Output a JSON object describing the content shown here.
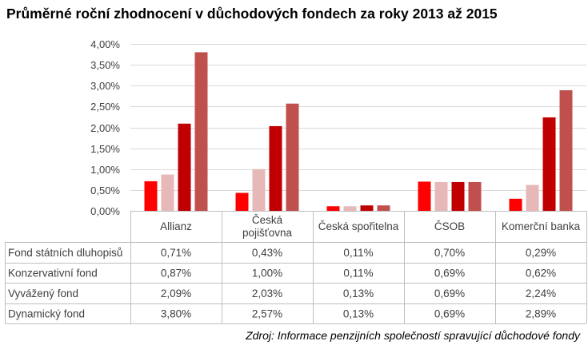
{
  "title": "Průměrné roční zhodnocení v důchodových fondech za roky 2013 až 2015",
  "source": "Zdroj: Informace penzijních společností spravující důchodové fondy",
  "chart_data": {
    "type": "bar",
    "categories": [
      "Allianz",
      "Česká pojišťovna",
      "Česká spořitelna",
      "ČSOB",
      "Komerční banka"
    ],
    "category_lines": [
      [
        "Allianz"
      ],
      [
        "Česká",
        "pojišťovna"
      ],
      [
        "Česká spořitelna"
      ],
      [
        "ČSOB"
      ],
      [
        "Komerční banka"
      ]
    ],
    "ylim": [
      0,
      4
    ],
    "yticks": [
      0,
      0.5,
      1,
      1.5,
      2,
      2.5,
      3,
      3.5,
      4
    ],
    "ytick_labels": [
      "0,00%",
      "0,50%",
      "1,00%",
      "1,50%",
      "2,00%",
      "2,50%",
      "3,00%",
      "3,50%",
      "4,00%"
    ],
    "grid": true,
    "legend": "data table below chart",
    "series": [
      {
        "name": "Fond státních dluhopisů",
        "values": [
          0.71,
          0.43,
          0.11,
          0.7,
          0.29
        ],
        "labels": [
          "0,71%",
          "0,43%",
          "0,11%",
          "0,70%",
          "0,29%"
        ],
        "color": "#ff0000"
      },
      {
        "name": "Konzervativní fond",
        "values": [
          0.87,
          1.0,
          0.11,
          0.69,
          0.62
        ],
        "labels": [
          "0,87%",
          "1,00%",
          "0,11%",
          "0,69%",
          "0,62%"
        ],
        "color": "#e6b9b8"
      },
      {
        "name": "Vyvážený fond",
        "values": [
          2.09,
          2.03,
          0.13,
          0.69,
          2.24
        ],
        "labels": [
          "2,09%",
          "2,03%",
          "0,13%",
          "0,69%",
          "2,24%"
        ],
        "color": "#c00000"
      },
      {
        "name": "Dynamický fond",
        "values": [
          3.8,
          2.57,
          0.13,
          0.69,
          2.89
        ],
        "labels": [
          "3,80%",
          "2,57%",
          "0,13%",
          "0,69%",
          "2,89%"
        ],
        "color": "#c0504d"
      }
    ]
  }
}
